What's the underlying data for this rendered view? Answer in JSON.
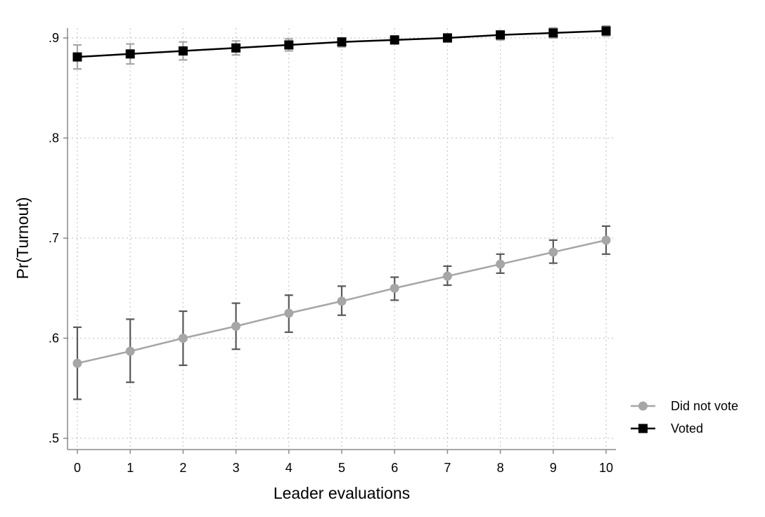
{
  "chart_data": {
    "type": "line",
    "title": "",
    "xlabel": "Leader evaluations",
    "ylabel": "Pr(Turnout)",
    "xlim": [
      0,
      10
    ],
    "ylim": [
      0.5,
      0.9
    ],
    "x": [
      0,
      1,
      2,
      3,
      4,
      5,
      6,
      7,
      8,
      9,
      10
    ],
    "x_ticks": [
      "0",
      "1",
      "2",
      "3",
      "4",
      "5",
      "6",
      "7",
      "8",
      "9",
      "10"
    ],
    "y_tick_values": [
      0.5,
      0.6,
      0.7,
      0.8,
      0.9
    ],
    "y_ticks": [
      ".5",
      ".6",
      ".7",
      ".8",
      ".9"
    ],
    "grid": true,
    "legend_position": "right",
    "series": [
      {
        "name": "Did not vote",
        "marker": "circle",
        "color": "#a6a6a6",
        "errorbar_color": "#595959",
        "values": [
          0.575,
          0.587,
          0.6,
          0.612,
          0.625,
          0.637,
          0.65,
          0.662,
          0.674,
          0.686,
          0.698
        ],
        "ci_lower": [
          0.539,
          0.556,
          0.573,
          0.589,
          0.606,
          0.623,
          0.638,
          0.653,
          0.665,
          0.675,
          0.684
        ],
        "ci_upper": [
          0.611,
          0.619,
          0.627,
          0.635,
          0.643,
          0.652,
          0.661,
          0.672,
          0.684,
          0.698,
          0.712
        ]
      },
      {
        "name": "Voted",
        "marker": "square",
        "color": "#000000",
        "errorbar_color": "#a6a6a6",
        "values": [
          0.881,
          0.884,
          0.887,
          0.89,
          0.893,
          0.896,
          0.898,
          0.9,
          0.903,
          0.905,
          0.907
        ],
        "ci_lower": [
          0.869,
          0.874,
          0.878,
          0.883,
          0.887,
          0.891,
          0.894,
          0.896,
          0.898,
          0.9,
          0.902
        ],
        "ci_upper": [
          0.893,
          0.894,
          0.896,
          0.897,
          0.899,
          0.9,
          0.902,
          0.904,
          0.907,
          0.91,
          0.912
        ]
      }
    ]
  }
}
